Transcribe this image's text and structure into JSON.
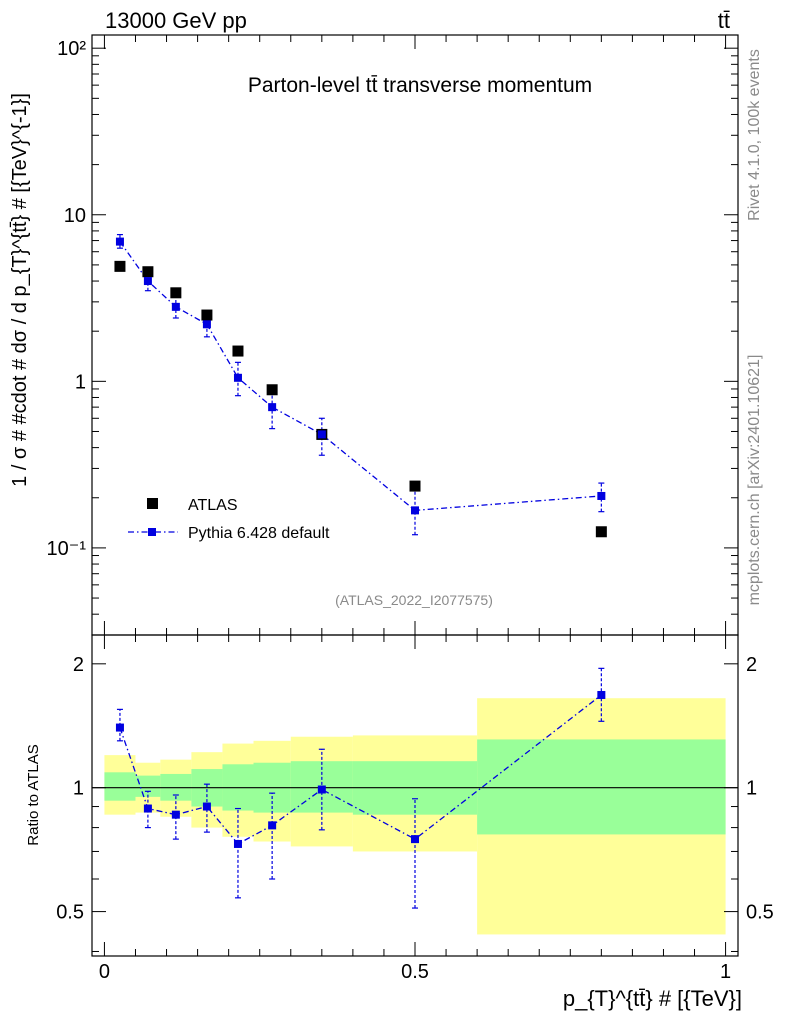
{
  "header": {
    "energy_label": "13000 GeV pp",
    "process_label": "tt̄"
  },
  "side": {
    "rivet_label": "Rivet 4.1.0,  100k events",
    "source_label": "mcplots.cern.ch [arXiv:2401.10621]"
  },
  "chart_data": [
    {
      "type": "scatter",
      "panel": "main",
      "title": "Parton-level tt̄ transverse momentum",
      "analysis_id": "(ATLAS_2022_I2077575)",
      "ylabel": "1 / σ # #cdot # dσ / d p_{T}^{tt̄} # [{TeV}^{-1}]",
      "xlabel": "p_{T}^{tt̄} # [{TeV}]",
      "yscale": "log",
      "ylim": [
        0.03,
        120
      ],
      "xlim": [
        -0.02,
        1.02
      ],
      "yticks": [
        {
          "value": 0.1,
          "label": "10⁻¹"
        },
        {
          "value": 1,
          "label": "1"
        },
        {
          "value": 10,
          "label": "10"
        },
        {
          "value": 100,
          "label": "10²"
        }
      ],
      "series": [
        {
          "name": "ATLAS",
          "color": "#000000",
          "marker": "square",
          "x": [
            0.025,
            0.07,
            0.115,
            0.165,
            0.215,
            0.27,
            0.35,
            0.5,
            0.8
          ],
          "y": [
            4.9,
            4.55,
            3.4,
            2.5,
            1.52,
            0.89,
            0.48,
            0.235,
            0.125
          ]
        },
        {
          "name": "Pythia 6.428 default",
          "color": "#0000e0",
          "marker": "square",
          "line": "dashdot",
          "x": [
            0.025,
            0.07,
            0.115,
            0.165,
            0.215,
            0.27,
            0.35,
            0.5,
            0.8
          ],
          "y": [
            6.9,
            4.0,
            2.8,
            2.2,
            1.05,
            0.7,
            0.48,
            0.168,
            0.205
          ],
          "err_low": [
            6.3,
            3.5,
            2.4,
            1.85,
            0.82,
            0.52,
            0.36,
            0.12,
            0.165
          ],
          "err_high": [
            7.6,
            4.5,
            3.2,
            2.55,
            1.3,
            0.88,
            0.6,
            0.22,
            0.245
          ]
        }
      ],
      "legend": [
        "ATLAS",
        "Pythia 6.428 default"
      ],
      "legend_position": "bottom-left"
    },
    {
      "type": "scatter",
      "panel": "ratio",
      "ylabel": "Ratio to ATLAS",
      "yscale": "log",
      "ylim": [
        0.39,
        2.35
      ],
      "xlim": [
        -0.02,
        1.02
      ],
      "yticks": [
        {
          "value": 0.5,
          "label": "0.5"
        },
        {
          "value": 1,
          "label": "1"
        },
        {
          "value": 2,
          "label": "2"
        }
      ],
      "xticks": [
        {
          "value": 0,
          "label": "0"
        },
        {
          "value": 0.5,
          "label": "0.5"
        },
        {
          "value": 1,
          "label": "1"
        }
      ],
      "bands": {
        "bin_edges": [
          0,
          0.05,
          0.09,
          0.14,
          0.19,
          0.24,
          0.3,
          0.4,
          0.6,
          1.0
        ],
        "inner_low": [
          0.93,
          0.95,
          0.93,
          0.9,
          0.88,
          0.87,
          0.87,
          0.86,
          0.77
        ],
        "inner_high": [
          1.09,
          1.07,
          1.08,
          1.11,
          1.14,
          1.15,
          1.16,
          1.16,
          1.31
        ],
        "outer_low": [
          0.86,
          0.87,
          0.85,
          0.8,
          0.76,
          0.74,
          0.72,
          0.7,
          0.44
        ],
        "outer_high": [
          1.2,
          1.15,
          1.17,
          1.22,
          1.28,
          1.3,
          1.33,
          1.34,
          1.65
        ],
        "inner_color": "#99ff99",
        "outer_color": "#ffff99"
      },
      "series": [
        {
          "name": "Pythia 6.428 default / ATLAS",
          "color": "#0000e0",
          "x": [
            0.025,
            0.07,
            0.115,
            0.165,
            0.215,
            0.27,
            0.35,
            0.5,
            0.8
          ],
          "y": [
            1.4,
            0.89,
            0.86,
            0.9,
            0.73,
            0.81,
            0.99,
            0.75,
            1.68
          ],
          "err_low": [
            1.3,
            0.8,
            0.75,
            0.78,
            0.54,
            0.6,
            0.79,
            0.51,
            1.45
          ],
          "err_high": [
            1.55,
            0.98,
            0.96,
            1.02,
            0.89,
            0.97,
            1.24,
            0.94,
            1.95
          ]
        }
      ]
    }
  ]
}
